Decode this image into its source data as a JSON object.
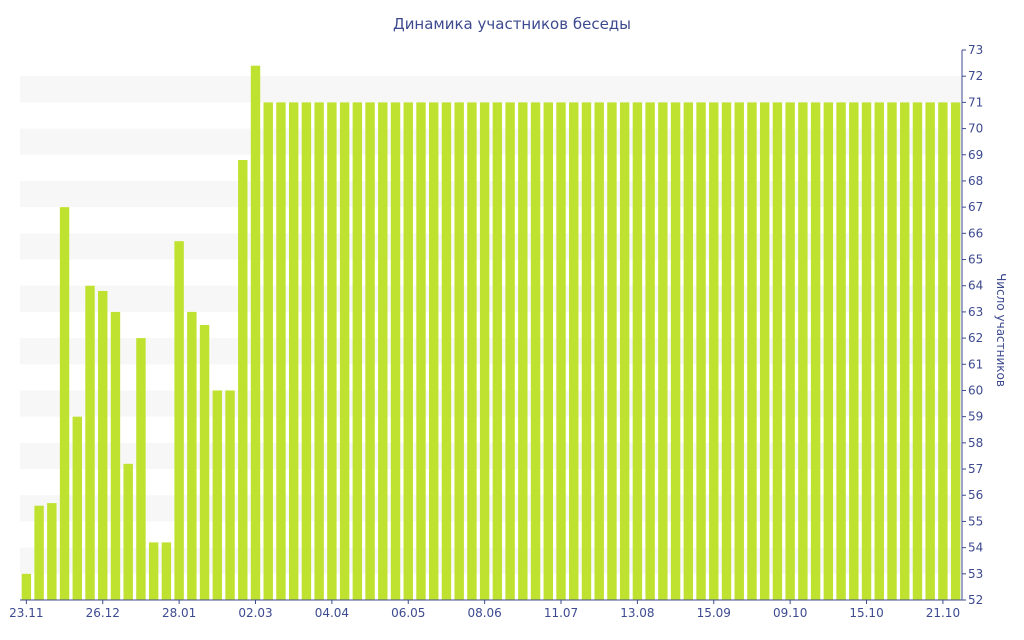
{
  "chart_data": {
    "type": "bar",
    "title": "Динамика участников беседы",
    "ylabel": "Число участников",
    "ylim": [
      52,
      73
    ],
    "y_ticks": [
      52,
      53,
      54,
      55,
      56,
      57,
      58,
      59,
      60,
      61,
      62,
      63,
      64,
      65,
      66,
      67,
      68,
      69,
      70,
      71,
      72,
      73
    ],
    "y_axis_position": "right",
    "grid": "horizontal bands",
    "x_tick_labels": [
      {
        "index": 0,
        "label": "23.11"
      },
      {
        "index": 6,
        "label": "26.12"
      },
      {
        "index": 12,
        "label": "28.01"
      },
      {
        "index": 18,
        "label": "02.03"
      },
      {
        "index": 24,
        "label": "04.04"
      },
      {
        "index": 30,
        "label": "06.05"
      },
      {
        "index": 36,
        "label": "08.06"
      },
      {
        "index": 42,
        "label": "11.07"
      },
      {
        "index": 48,
        "label": "13.08"
      },
      {
        "index": 54,
        "label": "15.09"
      },
      {
        "index": 60,
        "label": "09.10"
      },
      {
        "index": 66,
        "label": "15.10"
      },
      {
        "index": 72,
        "label": "21.10"
      }
    ],
    "values": [
      53,
      55.6,
      55.7,
      67,
      59,
      64,
      63.8,
      63,
      57.2,
      62,
      54.2,
      54.2,
      65.7,
      63,
      62.5,
      60,
      60,
      68.8,
      72.4,
      71,
      71,
      71,
      71,
      71,
      71,
      71,
      71,
      71,
      71,
      71,
      71,
      71,
      71,
      71,
      71,
      71,
      71,
      71,
      71,
      71,
      71,
      71,
      71,
      71,
      71,
      71,
      71,
      71,
      71,
      71,
      71,
      71,
      71,
      71,
      71,
      71,
      71,
      71,
      71,
      71,
      71,
      71,
      71,
      71,
      71,
      71,
      71,
      71,
      71,
      71,
      71,
      71,
      71,
      71
    ],
    "colors": {
      "bar": "#bfe231",
      "band": "#f7f7f7",
      "text": "#3d4a8f",
      "axis": "#3d4a8f"
    }
  }
}
